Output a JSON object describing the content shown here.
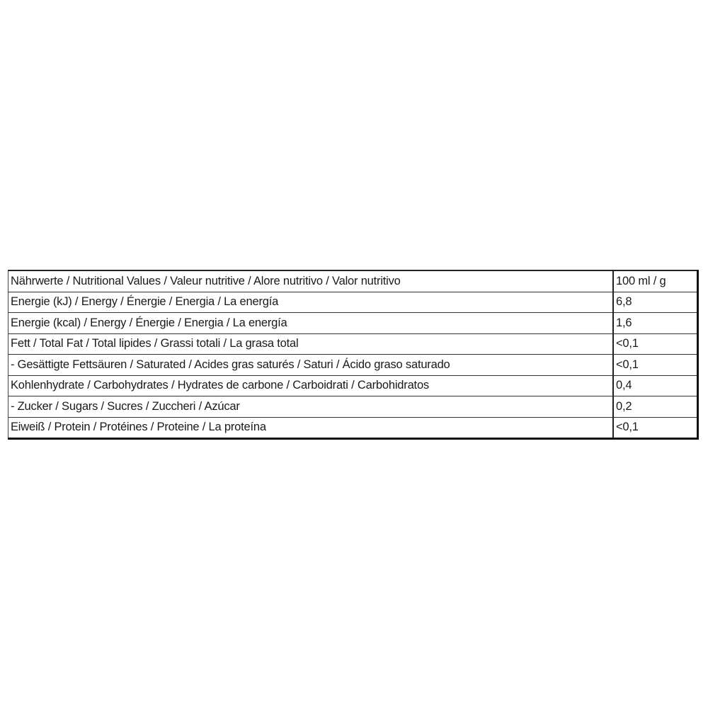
{
  "table": {
    "rows": [
      {
        "label": "Nährwerte / Nutritional Values / Valeur nutritive / Alore nutritivo / Valor nutritivo",
        "value": "100 ml / g"
      },
      {
        "label": "Energie (kJ) / Energy / Énergie / Energia / La energía",
        "value": "6,8"
      },
      {
        "label": "Energie (kcal) / Energy / Énergie / Energia / La energía",
        "value": "1,6"
      },
      {
        "label": "Fett / Total Fat / Total lipides / Grassi totali / La grasa total",
        "value": "<0,1"
      },
      {
        "label": "- Gesättigte Fettsäuren / Saturated / Acides gras saturés / Saturi / Ácido graso saturado",
        "value": "<0,1"
      },
      {
        "label": "Kohlenhydrate / Carbohydrates / Hydrates de carbone / Carboidrati / Carbohidratos",
        "value": "0,4"
      },
      {
        "label": "- Zucker / Sugars / Sucres / Zuccheri / Azúcar",
        "value": "0,2"
      },
      {
        "label": "Eiweiß / Protein / Protéines / Proteine / La proteína",
        "value": "<0,1"
      }
    ]
  }
}
